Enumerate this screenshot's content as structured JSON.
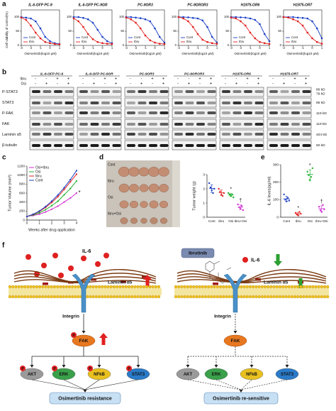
{
  "panel_labels": [
    "a",
    "b",
    "c",
    "d",
    "e",
    "f"
  ],
  "panel_a": {
    "ylabel": "Cell viability of control(%)",
    "xlabel": "Osimertinib(log10 μM)",
    "x": [
      -3,
      -2.5,
      -2,
      -1.5,
      -1,
      -0.5,
      0,
      0.5,
      1
    ],
    "xlim": [
      -3,
      1
    ],
    "xticks": [
      -3,
      -2,
      -1,
      0,
      1
    ],
    "ylim": [
      0,
      125
    ],
    "yticks": [
      0,
      50,
      100
    ],
    "legend": [
      {
        "name": "Cont",
        "color": "#1a3fc4"
      },
      {
        "name": "Ibru",
        "color": "#e02020"
      }
    ],
    "plots": [
      {
        "title": "IL-6-GFP PC-9",
        "cont": [
          100,
          98,
          95,
          85,
          60,
          30,
          15,
          8,
          5
        ],
        "ibru": [
          98,
          90,
          70,
          45,
          25,
          12,
          8,
          5,
          4
        ]
      },
      {
        "title": "IL-6-GFP PC-9GR",
        "cont": [
          100,
          100,
          97,
          92,
          80,
          55,
          30,
          15,
          8
        ],
        "ibru": [
          95,
          85,
          65,
          40,
          22,
          12,
          8,
          6,
          5
        ]
      },
      {
        "title": "PC-9OR3",
        "cont": [
          100,
          100,
          98,
          96,
          92,
          85,
          60,
          30,
          10
        ],
        "ibru": [
          98,
          92,
          80,
          60,
          35,
          18,
          10,
          6,
          5
        ]
      },
      {
        "title": "PC-9GROR3",
        "cont": [
          100,
          100,
          99,
          97,
          95,
          88,
          65,
          30,
          10
        ],
        "ibru": [
          100,
          95,
          85,
          65,
          40,
          20,
          12,
          8,
          6
        ]
      },
      {
        "title": "H1975-OR6",
        "cont": [
          100,
          100,
          99,
          98,
          95,
          90,
          75,
          40,
          15
        ],
        "ibru": [
          98,
          95,
          85,
          70,
          45,
          25,
          12,
          8,
          5
        ]
      },
      {
        "title": "H1975-OR7",
        "cont": [
          100,
          100,
          100,
          98,
          97,
          95,
          85,
          60,
          25
        ],
        "ibru": [
          100,
          98,
          92,
          85,
          70,
          45,
          25,
          12,
          6
        ]
      }
    ]
  },
  "panel_b": {
    "cell_lines": [
      "IL-6-GFP PC-9",
      "IL-6-GFP PC-9GR",
      "PC-9OR3",
      "PC-9GROR3",
      "H1975-OR6",
      "H1975-OR7"
    ],
    "row_header": [
      "Ibru",
      "Osi"
    ],
    "ibru": [
      "-",
      "-",
      "+",
      "+"
    ],
    "osi": [
      "-",
      "+",
      "-",
      "+"
    ],
    "proteins": [
      "P-STAT3",
      "STAT3",
      "P-FAK",
      "FAK",
      "Laminin α5",
      "β-tubulin"
    ],
    "kda": [
      "86 kD",
      "79 kD",
      "86 kD",
      "119 kD",
      "119 kD",
      "404 kD",
      "50 kD"
    ]
  },
  "panel_c": {
    "type": "line",
    "ylabel": "Tumor Volume (mm³)",
    "xlabel": "Weeks after drug application",
    "x": [
      0,
      0.5,
      1,
      1.5,
      2,
      2.5,
      3,
      3.5,
      4
    ],
    "xlim": [
      0,
      4
    ],
    "xticks": [
      0,
      1,
      2,
      3,
      4
    ],
    "ylim": [
      0,
      1200
    ],
    "yticks": [
      0,
      200,
      400,
      600,
      800,
      1000,
      1200
    ],
    "series": [
      {
        "name": "Osi+Ibru",
        "color": "#d030d0",
        "values": [
          80,
          100,
          130,
          180,
          240,
          310,
          400,
          490,
          600
        ],
        "annotation": "*"
      },
      {
        "name": "Osi",
        "color": "#20b030",
        "values": [
          80,
          110,
          160,
          230,
          320,
          420,
          560,
          700,
          870
        ]
      },
      {
        "name": "Ibru",
        "color": "#e02020",
        "values": [
          80,
          120,
          190,
          280,
          390,
          520,
          680,
          850,
          1020
        ]
      },
      {
        "name": "Cont",
        "color": "#1a3fc4",
        "values": [
          80,
          130,
          200,
          300,
          420,
          560,
          720,
          900,
          1100
        ]
      }
    ]
  },
  "panel_d": {
    "photo_rows": [
      "Cont",
      "Ibru",
      "Osi",
      "Ibru+Osi"
    ],
    "type": "dot",
    "ylabel": "Tumor  weight (g)",
    "categories": [
      "Cont",
      "Ibru",
      "Osi",
      "Ibru+Osi"
    ],
    "colors": [
      "#1a3fc4",
      "#e02020",
      "#20b030",
      "#d030d0"
    ],
    "ylim": [
      0,
      3
    ],
    "yticks": [
      0,
      1,
      2,
      3
    ],
    "groups": [
      [
        2.4,
        2.1,
        1.9,
        1.7,
        2.0
      ],
      [
        2.0,
        1.8,
        1.6,
        1.5,
        1.7
      ],
      [
        1.7,
        1.6,
        1.5,
        1.6,
        1.4
      ],
      [
        0.9,
        0.7,
        0.6,
        0.8,
        0.5
      ]
    ],
    "means": [
      2.02,
      1.72,
      1.56,
      0.7
    ],
    "sd": [
      0.27,
      0.19,
      0.11,
      0.16
    ],
    "annotations": [
      null,
      null,
      "*",
      "†"
    ]
  },
  "panel_e": {
    "type": "dot",
    "ylabel": "IL-6 leves(pg/ml)",
    "categories": [
      "Cont",
      "Ibru",
      "Osi",
      "Ibru+Osi"
    ],
    "colors": [
      "#1a3fc4",
      "#e02020",
      "#20b030",
      "#d030d0"
    ],
    "ylim": [
      0,
      300
    ],
    "yticks": [
      0,
      100,
      200,
      300
    ],
    "groups": [
      [
        130,
        100,
        90,
        110,
        95
      ],
      [
        25,
        15,
        10,
        30,
        20
      ],
      [
        260,
        240,
        210,
        230,
        280
      ],
      [
        60,
        40,
        30,
        70,
        45
      ]
    ],
    "means": [
      105,
      20,
      244,
      49
    ],
    "sd": [
      15,
      8,
      27,
      16
    ],
    "annotations": [
      null,
      "*",
      "*",
      "†"
    ]
  },
  "panel_f": {
    "left": {
      "il6": "IL-6",
      "laminin": "Laminin α5",
      "integrin": "Integrin",
      "fak": "FAK",
      "p": "P",
      "pathways": [
        "AKT",
        "ERK",
        "NFkB",
        "STAT3"
      ],
      "outcome": "Osimertinib resistance"
    },
    "right": {
      "drug": "Ibrutinib",
      "il6": "IL-6",
      "laminin": "Laminin α5",
      "integrin": "Integrin",
      "fak": "FAK",
      "pathways": [
        "AKT",
        "ERK",
        "NFkB",
        "STAT3"
      ],
      "outcome": "Osimertinib re-sensitive"
    }
  }
}
